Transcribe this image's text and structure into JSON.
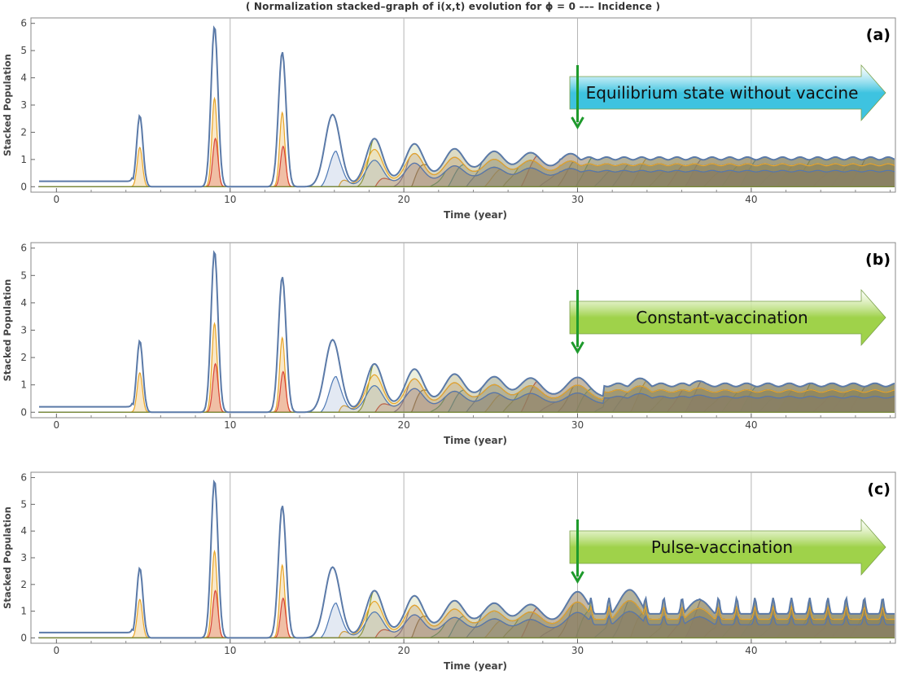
{
  "caption": "( Normalization stacked–graph of i(x,t) evolution for ϕ =  0   ––– Incidence )",
  "colors": {
    "outline": "#5b7aa8",
    "arrow_blue": "#3ec3e0",
    "arrow_green": "#9fd24a",
    "marker": "#1e9a2c",
    "layers": [
      "#4e79b5",
      "#e8a528",
      "#8a9a2d",
      "#d9453b",
      "#7d6aa8",
      "#8e6e3e",
      "#3aa86a",
      "#2f8fb0"
    ]
  },
  "chart_data": [
    {
      "type": "area",
      "panel_label": "(a)",
      "annotation": "Equilibrium state without vaccine",
      "annotation_color": "#3ec3e0",
      "mode": "none",
      "xlabel": "Time (year)",
      "ylabel": "Stacked  Population",
      "xlim": [
        -1,
        48.3
      ],
      "ylim": [
        -0.2,
        6.2
      ],
      "xticks": [
        0,
        10,
        20,
        30,
        40
      ],
      "yticks": [
        0,
        1,
        2,
        3,
        4,
        5,
        6
      ],
      "grid_x": [
        10,
        20,
        30,
        40
      ],
      "marker_x": 30,
      "peaks": [
        [
          4.8,
          2.62
        ],
        [
          9.1,
          5.9
        ],
        [
          13.0,
          4.95
        ],
        [
          15.9,
          2.65
        ],
        [
          18.3,
          2.28
        ],
        [
          20.6,
          1.96
        ],
        [
          22.9,
          1.65
        ],
        [
          25.2,
          1.5
        ],
        [
          27.3,
          1.4
        ],
        [
          29.6,
          1.33
        ]
      ]
    },
    {
      "type": "area",
      "panel_label": "(b)",
      "annotation": "Constant-vaccination",
      "annotation_color": "#9fd24a",
      "mode": "constant",
      "xlabel": "Time (year)",
      "ylabel": "Stacked  Population",
      "xlim": [
        -1,
        48.3
      ],
      "ylim": [
        -0.2,
        6.2
      ],
      "xticks": [
        0,
        10,
        20,
        30,
        40
      ],
      "yticks": [
        0,
        1,
        2,
        3,
        4,
        5,
        6
      ],
      "grid_x": [
        10,
        20,
        30,
        40
      ],
      "marker_x": 30,
      "peaks": [
        [
          4.8,
          2.62
        ],
        [
          9.1,
          5.9
        ],
        [
          13.0,
          4.95
        ],
        [
          15.9,
          2.65
        ],
        [
          18.3,
          2.28
        ],
        [
          20.6,
          1.96
        ],
        [
          22.9,
          1.65
        ],
        [
          25.2,
          1.5
        ],
        [
          27.3,
          1.4
        ],
        [
          30.0,
          1.45
        ],
        [
          33.6,
          1.38
        ],
        [
          37.0,
          1.18
        ]
      ]
    },
    {
      "type": "area",
      "panel_label": "(c)",
      "annotation": "Pulse-vaccination",
      "annotation_color": "#9fd24a",
      "mode": "pulse",
      "xlabel": "Time (year)",
      "ylabel": "Stacked  Population",
      "xlim": [
        -1,
        48.3
      ],
      "ylim": [
        -0.2,
        6.2
      ],
      "xticks": [
        0,
        10,
        20,
        30,
        40
      ],
      "yticks": [
        0,
        1,
        2,
        3,
        4,
        5,
        6
      ],
      "grid_x": [
        10,
        20,
        30,
        40
      ],
      "marker_x": 30,
      "peaks": [
        [
          4.8,
          2.62
        ],
        [
          9.1,
          5.9
        ],
        [
          13.0,
          4.95
        ],
        [
          15.9,
          2.65
        ],
        [
          18.3,
          2.28
        ],
        [
          20.6,
          1.96
        ],
        [
          22.9,
          1.65
        ],
        [
          25.2,
          1.5
        ],
        [
          27.3,
          1.4
        ],
        [
          30.0,
          2.0
        ],
        [
          33.0,
          2.1
        ],
        [
          37.0,
          1.75
        ]
      ]
    }
  ]
}
